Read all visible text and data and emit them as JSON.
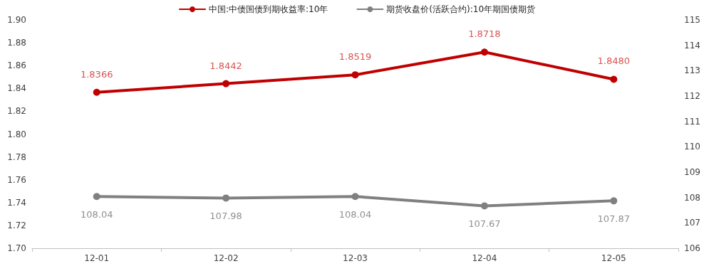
{
  "chart_data": {
    "type": "line",
    "categories": [
      "12-01",
      "12-02",
      "12-03",
      "12-04",
      "12-05"
    ],
    "series": [
      {
        "name": "中国:中债国债到期收益率:10年",
        "color": "#c00000",
        "values": [
          1.8366,
          1.8442,
          1.8519,
          1.8718,
          1.848
        ],
        "value_labels": [
          "1.8366",
          "1.8442",
          "1.8519",
          "1.8718",
          "1.8480"
        ]
      },
      {
        "name": "期货收盘价(活跃合约):10年期国债期货",
        "color": "#808080",
        "axis": "y2",
        "values": [
          108.04,
          107.98,
          108.04,
          107.67,
          107.87
        ],
        "value_labels": [
          "108.04",
          "107.98",
          "108.04",
          "107.67",
          "107.87"
        ]
      }
    ],
    "ylim": [
      1.7,
      1.9
    ],
    "yticks": [
      {
        "value": 1.7,
        "label": "1.70"
      },
      1.72,
      1.74,
      1.76,
      1.78,
      {
        "value": 1.8,
        "label": "1.80"
      },
      1.82,
      1.84,
      1.86,
      1.88,
      {
        "value": 1.9,
        "label": "1.90"
      }
    ],
    "y2lim": [
      106,
      115
    ],
    "y2ticks": [
      106,
      107,
      108,
      109,
      110,
      111,
      112,
      113,
      114,
      115
    ],
    "grid": false,
    "legend": "top",
    "marker": "circle",
    "line_style": "solid"
  }
}
